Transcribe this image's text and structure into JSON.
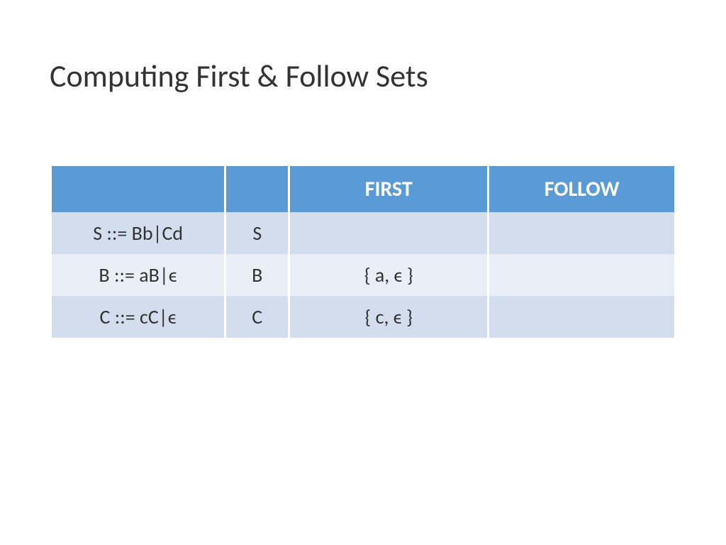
{
  "title": "Computing First & Follow Sets",
  "headers": {
    "production": "",
    "symbol": "",
    "first": "FIRST",
    "follow": "FOLLOW"
  },
  "rows": [
    {
      "production": "S ::= Bb|Cd",
      "symbol": "S",
      "first": "",
      "follow": "",
      "first_highlight": false,
      "follow_highlight": false
    },
    {
      "production": "B ::= aB|ϵ",
      "symbol": "B",
      "first": "{ a, ϵ }",
      "follow": "",
      "first_highlight": true,
      "follow_highlight": false
    },
    {
      "production": "C ::= cC|ϵ",
      "symbol": "C",
      "first": "{ c, ϵ }",
      "follow": "",
      "first_highlight": true,
      "follow_highlight": false
    }
  ],
  "colors": {
    "header_bg": "#5b9bd5",
    "header_text": "#ffffff",
    "row_dark": "#d2deee",
    "row_light": "#eaeff7",
    "text": "#333333",
    "highlight": "#ff0000",
    "background": "#ffffff"
  },
  "typography": {
    "title_fontsize": 44,
    "header_fontsize": 30,
    "cell_fontsize": 28,
    "font_family": "Calibri"
  },
  "column_widths": {
    "production": "28%",
    "symbol": "10%",
    "first": "32%",
    "follow": "30%"
  }
}
